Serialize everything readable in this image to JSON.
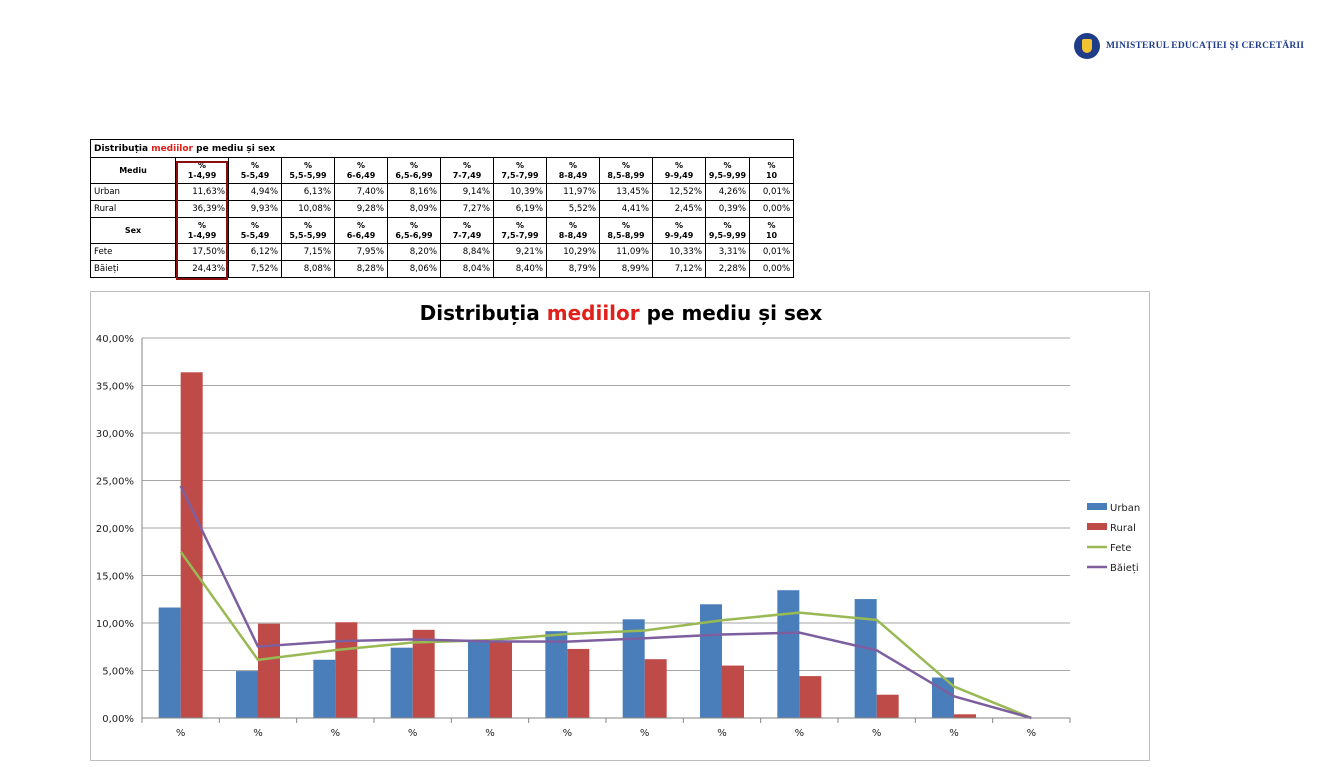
{
  "header": {
    "logo_text": "MINISTERUL EDUCAȚIEI ȘI CERCETĂRII"
  },
  "table": {
    "title_prefix": "Distribuția ",
    "title_highlight": "mediilor",
    "title_suffix": " pe mediu și sex",
    "groups": [
      {
        "label": "Mediu",
        "columns": [
          [
            "%",
            "1-4,99"
          ],
          [
            "%",
            "5-5,49"
          ],
          [
            "%",
            "5,5-5,99"
          ],
          [
            "%",
            "6-6,49"
          ],
          [
            "%",
            "6,5-6,99"
          ],
          [
            "%",
            "7-7,49"
          ],
          [
            "%",
            "7,5-7,99"
          ],
          [
            "%",
            "8-8,49"
          ],
          [
            "%",
            "8,5-8,99"
          ],
          [
            "%",
            "9-9,49"
          ],
          [
            "%",
            "9,5-9,99"
          ],
          [
            "%",
            "10"
          ]
        ],
        "rows": [
          {
            "name": "Urban",
            "values": [
              "11,63%",
              "4,94%",
              "6,13%",
              "7,40%",
              "8,16%",
              "9,14%",
              "10,39%",
              "11,97%",
              "13,45%",
              "12,52%",
              "4,26%",
              "0,01%"
            ]
          },
          {
            "name": "Rural",
            "values": [
              "36,39%",
              "9,93%",
              "10,08%",
              "9,28%",
              "8,09%",
              "7,27%",
              "6,19%",
              "5,52%",
              "4,41%",
              "2,45%",
              "0,39%",
              "0,00%"
            ]
          }
        ]
      },
      {
        "label": "Sex",
        "columns": [
          [
            "%",
            "1-4,99"
          ],
          [
            "%",
            "5-5,49"
          ],
          [
            "%",
            "5,5-5,99"
          ],
          [
            "%",
            "6-6,49"
          ],
          [
            "%",
            "6,5-6,99"
          ],
          [
            "%",
            "7-7,49"
          ],
          [
            "%",
            "7,5-7,99"
          ],
          [
            "%",
            "8-8,49"
          ],
          [
            "%",
            "8,5-8,99"
          ],
          [
            "%",
            "9-9,49"
          ],
          [
            "%",
            "9,5-9,99"
          ],
          [
            "%",
            "10"
          ]
        ],
        "rows": [
          {
            "name": "Fete",
            "values": [
              "17,50%",
              "6,12%",
              "7,15%",
              "7,95%",
              "8,20%",
              "8,84%",
              "9,21%",
              "10,29%",
              "11,09%",
              "10,33%",
              "3,31%",
              "0,01%"
            ]
          },
          {
            "name": "Băieți",
            "values": [
              "24,43%",
              "7,52%",
              "8,08%",
              "8,28%",
              "8,06%",
              "8,04%",
              "8,40%",
              "8,79%",
              "8,99%",
              "7,12%",
              "2,28%",
              "0,00%"
            ]
          }
        ]
      }
    ]
  },
  "chart_data": {
    "type": "bar",
    "title_prefix": "Distribuția ",
    "title_highlight": "mediilor",
    "title_suffix": " pe mediu și sex",
    "categories": [
      "%",
      "%",
      "%",
      "%",
      "%",
      "%",
      "%",
      "%",
      "%",
      "%",
      "%",
      "%"
    ],
    "ylim": [
      0,
      40
    ],
    "ytick_step": 5,
    "ytick_labels": [
      "0,00%",
      "5,00%",
      "10,00%",
      "15,00%",
      "20,00%",
      "25,00%",
      "30,00%",
      "35,00%",
      "40,00%"
    ],
    "grid": true,
    "legend_position": "right",
    "series": [
      {
        "name": "Urban",
        "kind": "bar",
        "color": "#4a7ebb",
        "values": [
          11.63,
          4.94,
          6.13,
          7.4,
          8.16,
          9.14,
          10.39,
          11.97,
          13.45,
          12.52,
          4.26,
          0.01
        ]
      },
      {
        "name": "Rural",
        "kind": "bar",
        "color": "#be4b48",
        "values": [
          36.39,
          9.93,
          10.08,
          9.28,
          8.09,
          7.27,
          6.19,
          5.52,
          4.41,
          2.45,
          0.39,
          0.0
        ]
      },
      {
        "name": "Fete",
        "kind": "line",
        "color": "#98b954",
        "values": [
          17.5,
          6.12,
          7.15,
          7.95,
          8.2,
          8.84,
          9.21,
          10.29,
          11.09,
          10.33,
          3.31,
          0.01
        ]
      },
      {
        "name": "Băieți",
        "kind": "line",
        "color": "#7d5fa0",
        "values": [
          24.43,
          7.52,
          8.08,
          8.28,
          8.06,
          8.04,
          8.4,
          8.79,
          8.99,
          7.12,
          2.28,
          0.0
        ]
      }
    ]
  }
}
